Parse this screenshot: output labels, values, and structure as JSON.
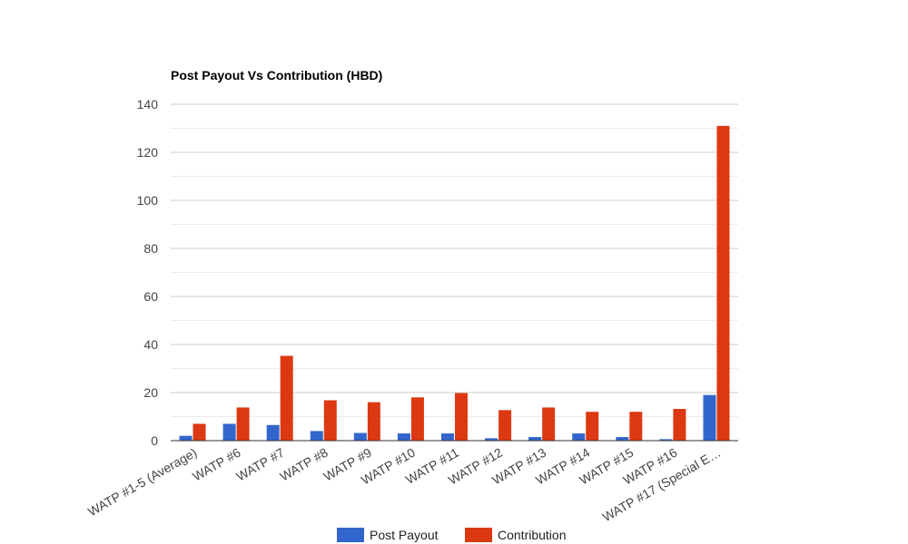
{
  "chart_data": {
    "type": "bar",
    "title": "Post Payout Vs Contribution (HBD)",
    "xlabel": "",
    "ylabel": "",
    "categories": [
      "WATP #1-5 (Average)",
      "WATP #6",
      "WATP #7",
      "WATP #8",
      "WATP #9",
      "WATP #10",
      "WATP #11",
      "WATP #12",
      "WATP #13",
      "WATP #14",
      "WATP #15",
      "WATP #16",
      "WATP #17 (Special E…"
    ],
    "series": [
      {
        "name": "Post Payout",
        "color": "#3366cc",
        "values": [
          2.0,
          7.0,
          6.5,
          4.0,
          3.2,
          3.0,
          3.0,
          1.0,
          1.5,
          3.0,
          1.5,
          0.6,
          19.0
        ]
      },
      {
        "name": "Contribution",
        "color": "#dc3912",
        "values": [
          7.0,
          13.8,
          35.3,
          16.8,
          16.0,
          18.0,
          19.8,
          12.7,
          13.8,
          12.0,
          12.0,
          13.2,
          131.0
        ]
      }
    ],
    "ylim": [
      0,
      140
    ],
    "yticks": [
      0,
      20,
      40,
      60,
      80,
      100,
      120,
      140
    ],
    "grid": true,
    "legend_position": "bottom"
  }
}
